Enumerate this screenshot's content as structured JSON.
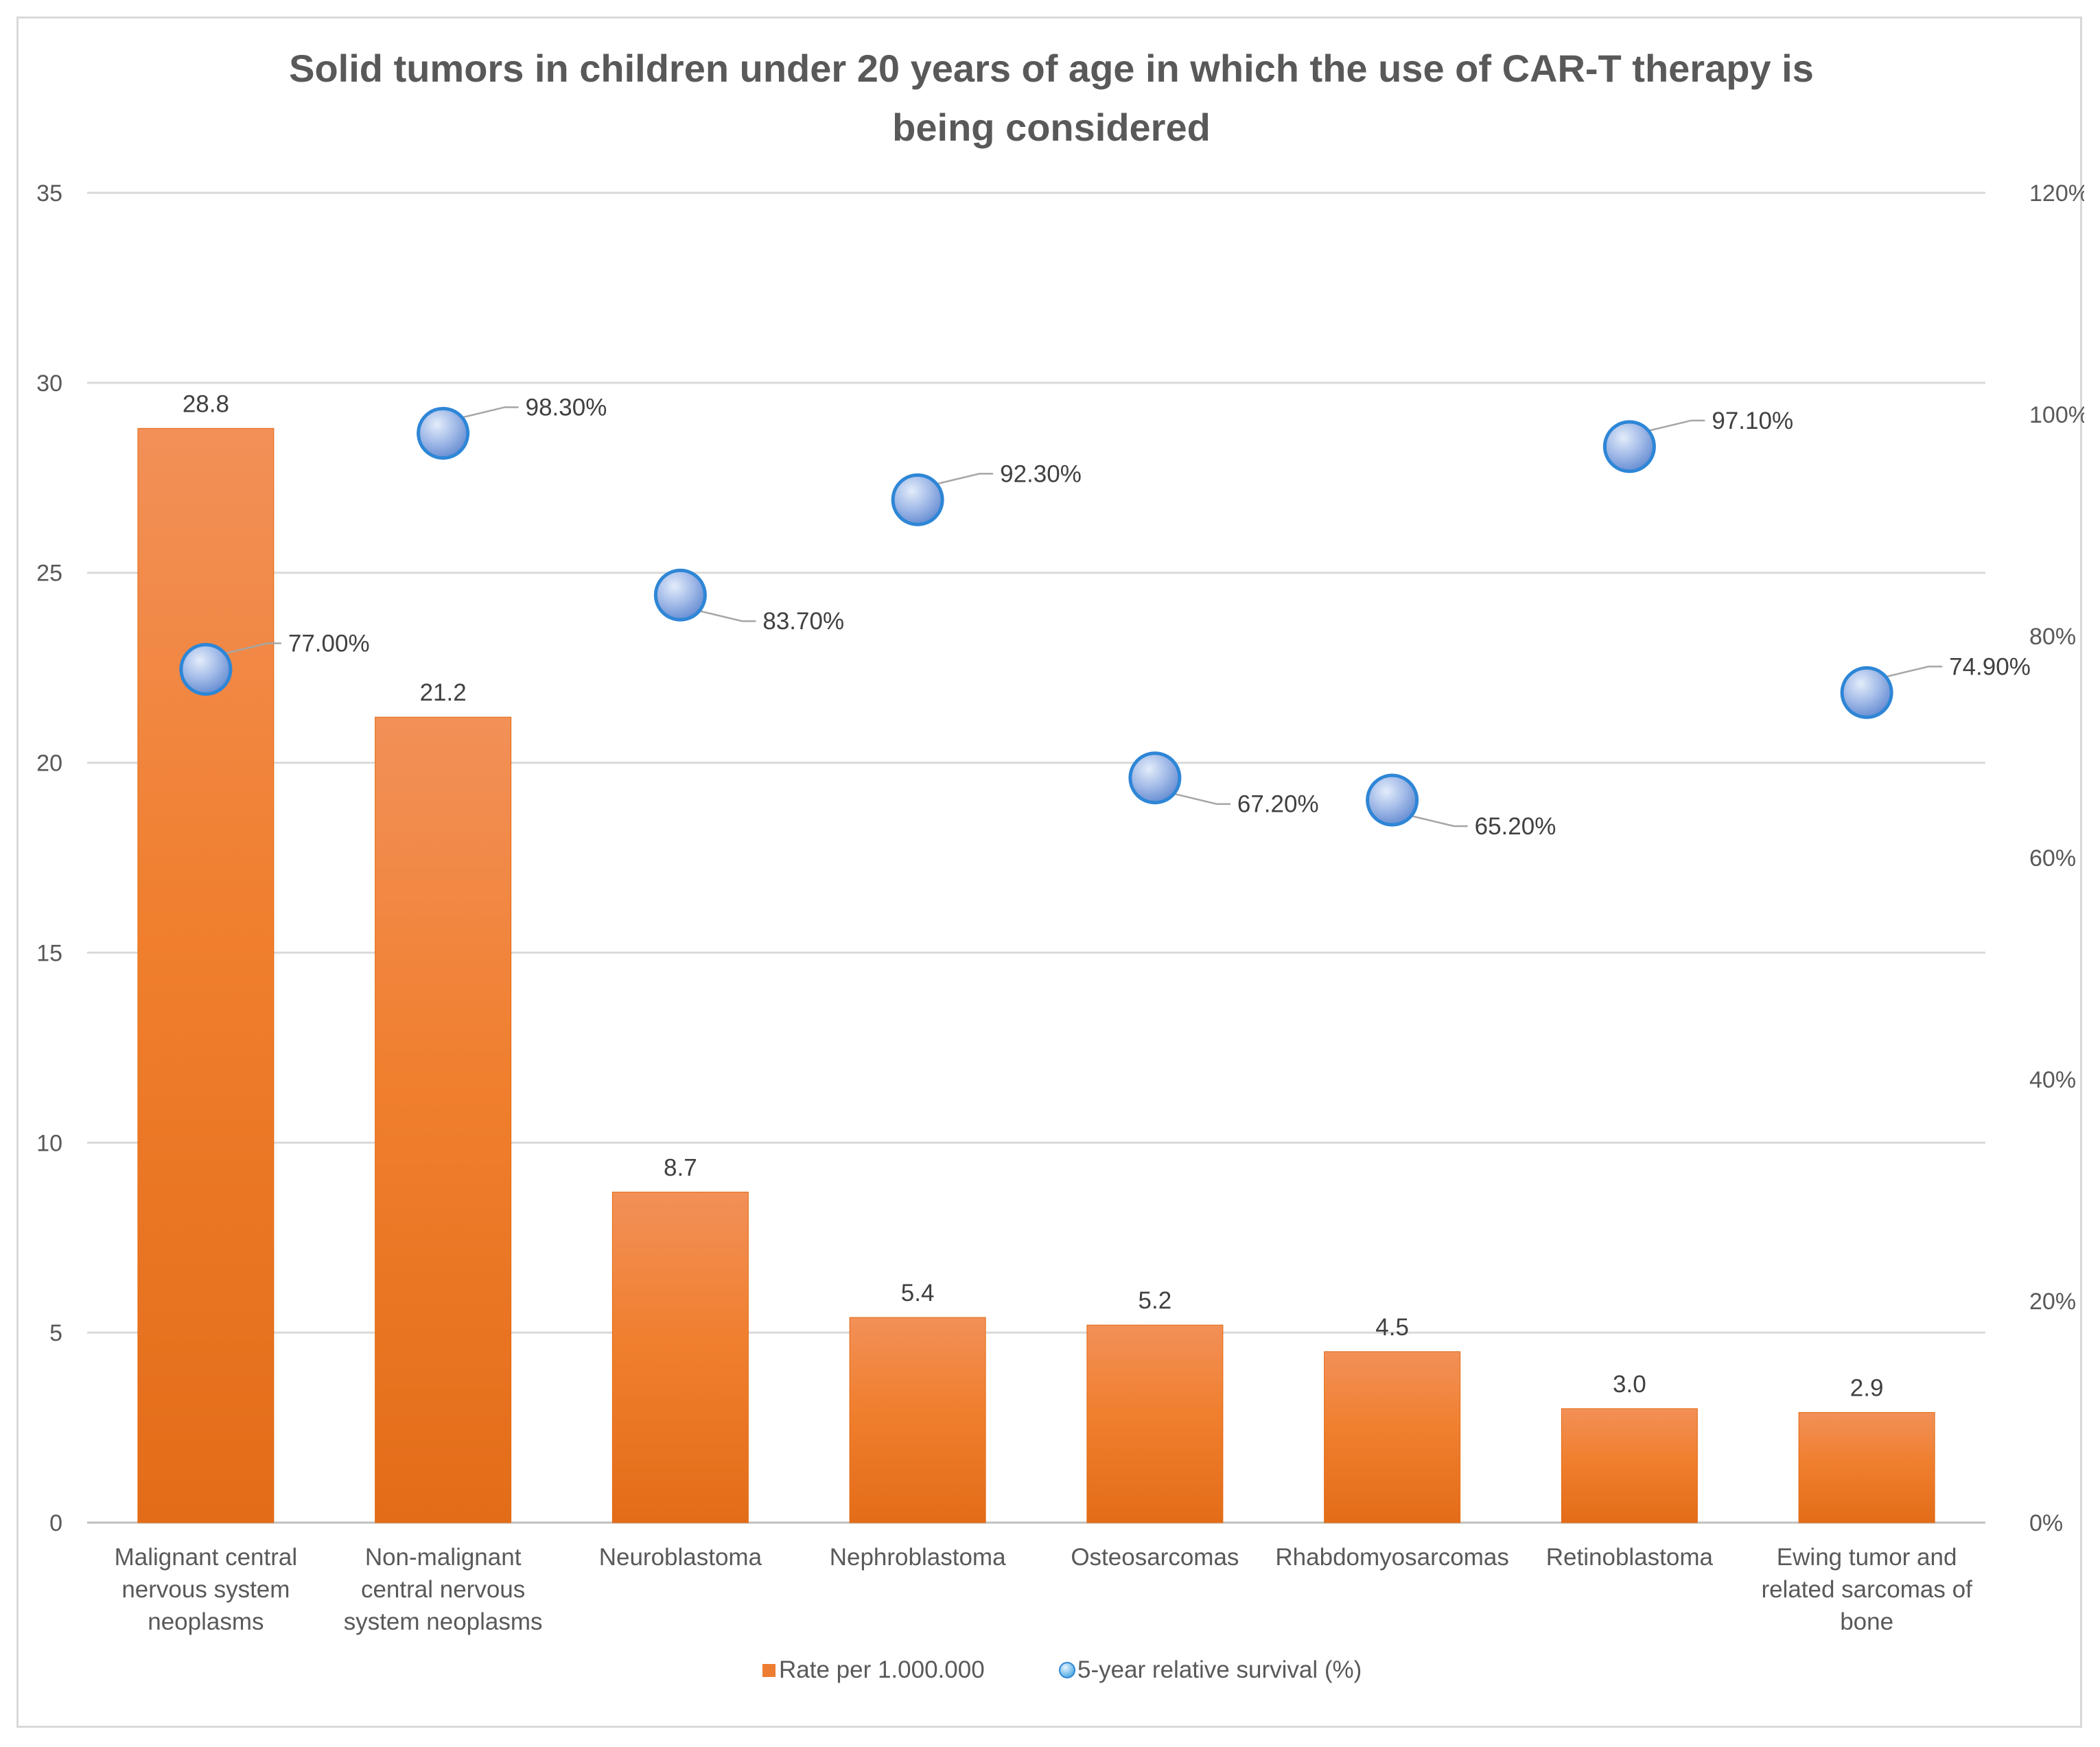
{
  "chart_data": {
    "type": "bar",
    "title": "Solid tumors in children under 20 years of age in which the use of CAR-T therapy is being considered",
    "title_lines": [
      "Solid tumors in children under 20 years of age in which the use of CAR-T therapy is",
      "being considered"
    ],
    "categories": [
      "Malignant central nervous system neoplasms",
      "Non-malignant central nervous system neoplasms",
      "Neuroblastoma",
      "Nephroblastoma",
      "Osteosarcomas",
      "Rhabdomyosarcomas",
      "Retinoblastoma",
      "Ewing tumor and related sarcomas of bone"
    ],
    "category_lines": [
      [
        "Malignant central",
        "nervous system",
        "neoplasms"
      ],
      [
        "Non-malignant",
        "central nervous",
        "system neoplasms"
      ],
      [
        "Neuroblastoma"
      ],
      [
        "Nephroblastoma"
      ],
      [
        "Osteosarcomas"
      ],
      [
        "Rhabdomyosarcomas"
      ],
      [
        "Retinoblastoma"
      ],
      [
        "Ewing tumor and",
        "related sarcomas of",
        "bone"
      ]
    ],
    "series": [
      {
        "name": "Rate per 1.000.000",
        "type": "bar",
        "axis": "left",
        "color": "#ED7D31",
        "values": [
          28.8,
          21.2,
          8.7,
          5.4,
          5.2,
          4.5,
          3.0,
          2.9
        ],
        "labels": [
          "28.8",
          "21.2",
          "8.7",
          "5.4",
          "5.2",
          "4.5",
          "3.0",
          "2.9"
        ]
      },
      {
        "name": "5-year relative survival (%)",
        "type": "scatter",
        "axis": "right",
        "color": "#8FAADC",
        "values": [
          77.0,
          98.3,
          83.7,
          92.3,
          67.2,
          65.2,
          97.1,
          74.9
        ],
        "labels": [
          "77.00%",
          "98.30%",
          "83.70%",
          "92.30%",
          "67.20%",
          "65.20%",
          "97.10%",
          "74.90%"
        ]
      }
    ],
    "y_left": {
      "min": 0,
      "max": 35,
      "ticks": [
        0,
        5,
        10,
        15,
        20,
        25,
        30,
        35
      ]
    },
    "y_right": {
      "min": 0,
      "max": 120,
      "ticks": [
        0,
        20,
        40,
        60,
        80,
        100,
        120
      ],
      "tick_labels": [
        "0%",
        "20%",
        "40%",
        "60%",
        "80%",
        "100%",
        "120%"
      ]
    },
    "grid": true,
    "legend": {
      "position": "bottom",
      "items": [
        "Rate per 1.000.000",
        "5-year relative survival (%)"
      ]
    }
  }
}
